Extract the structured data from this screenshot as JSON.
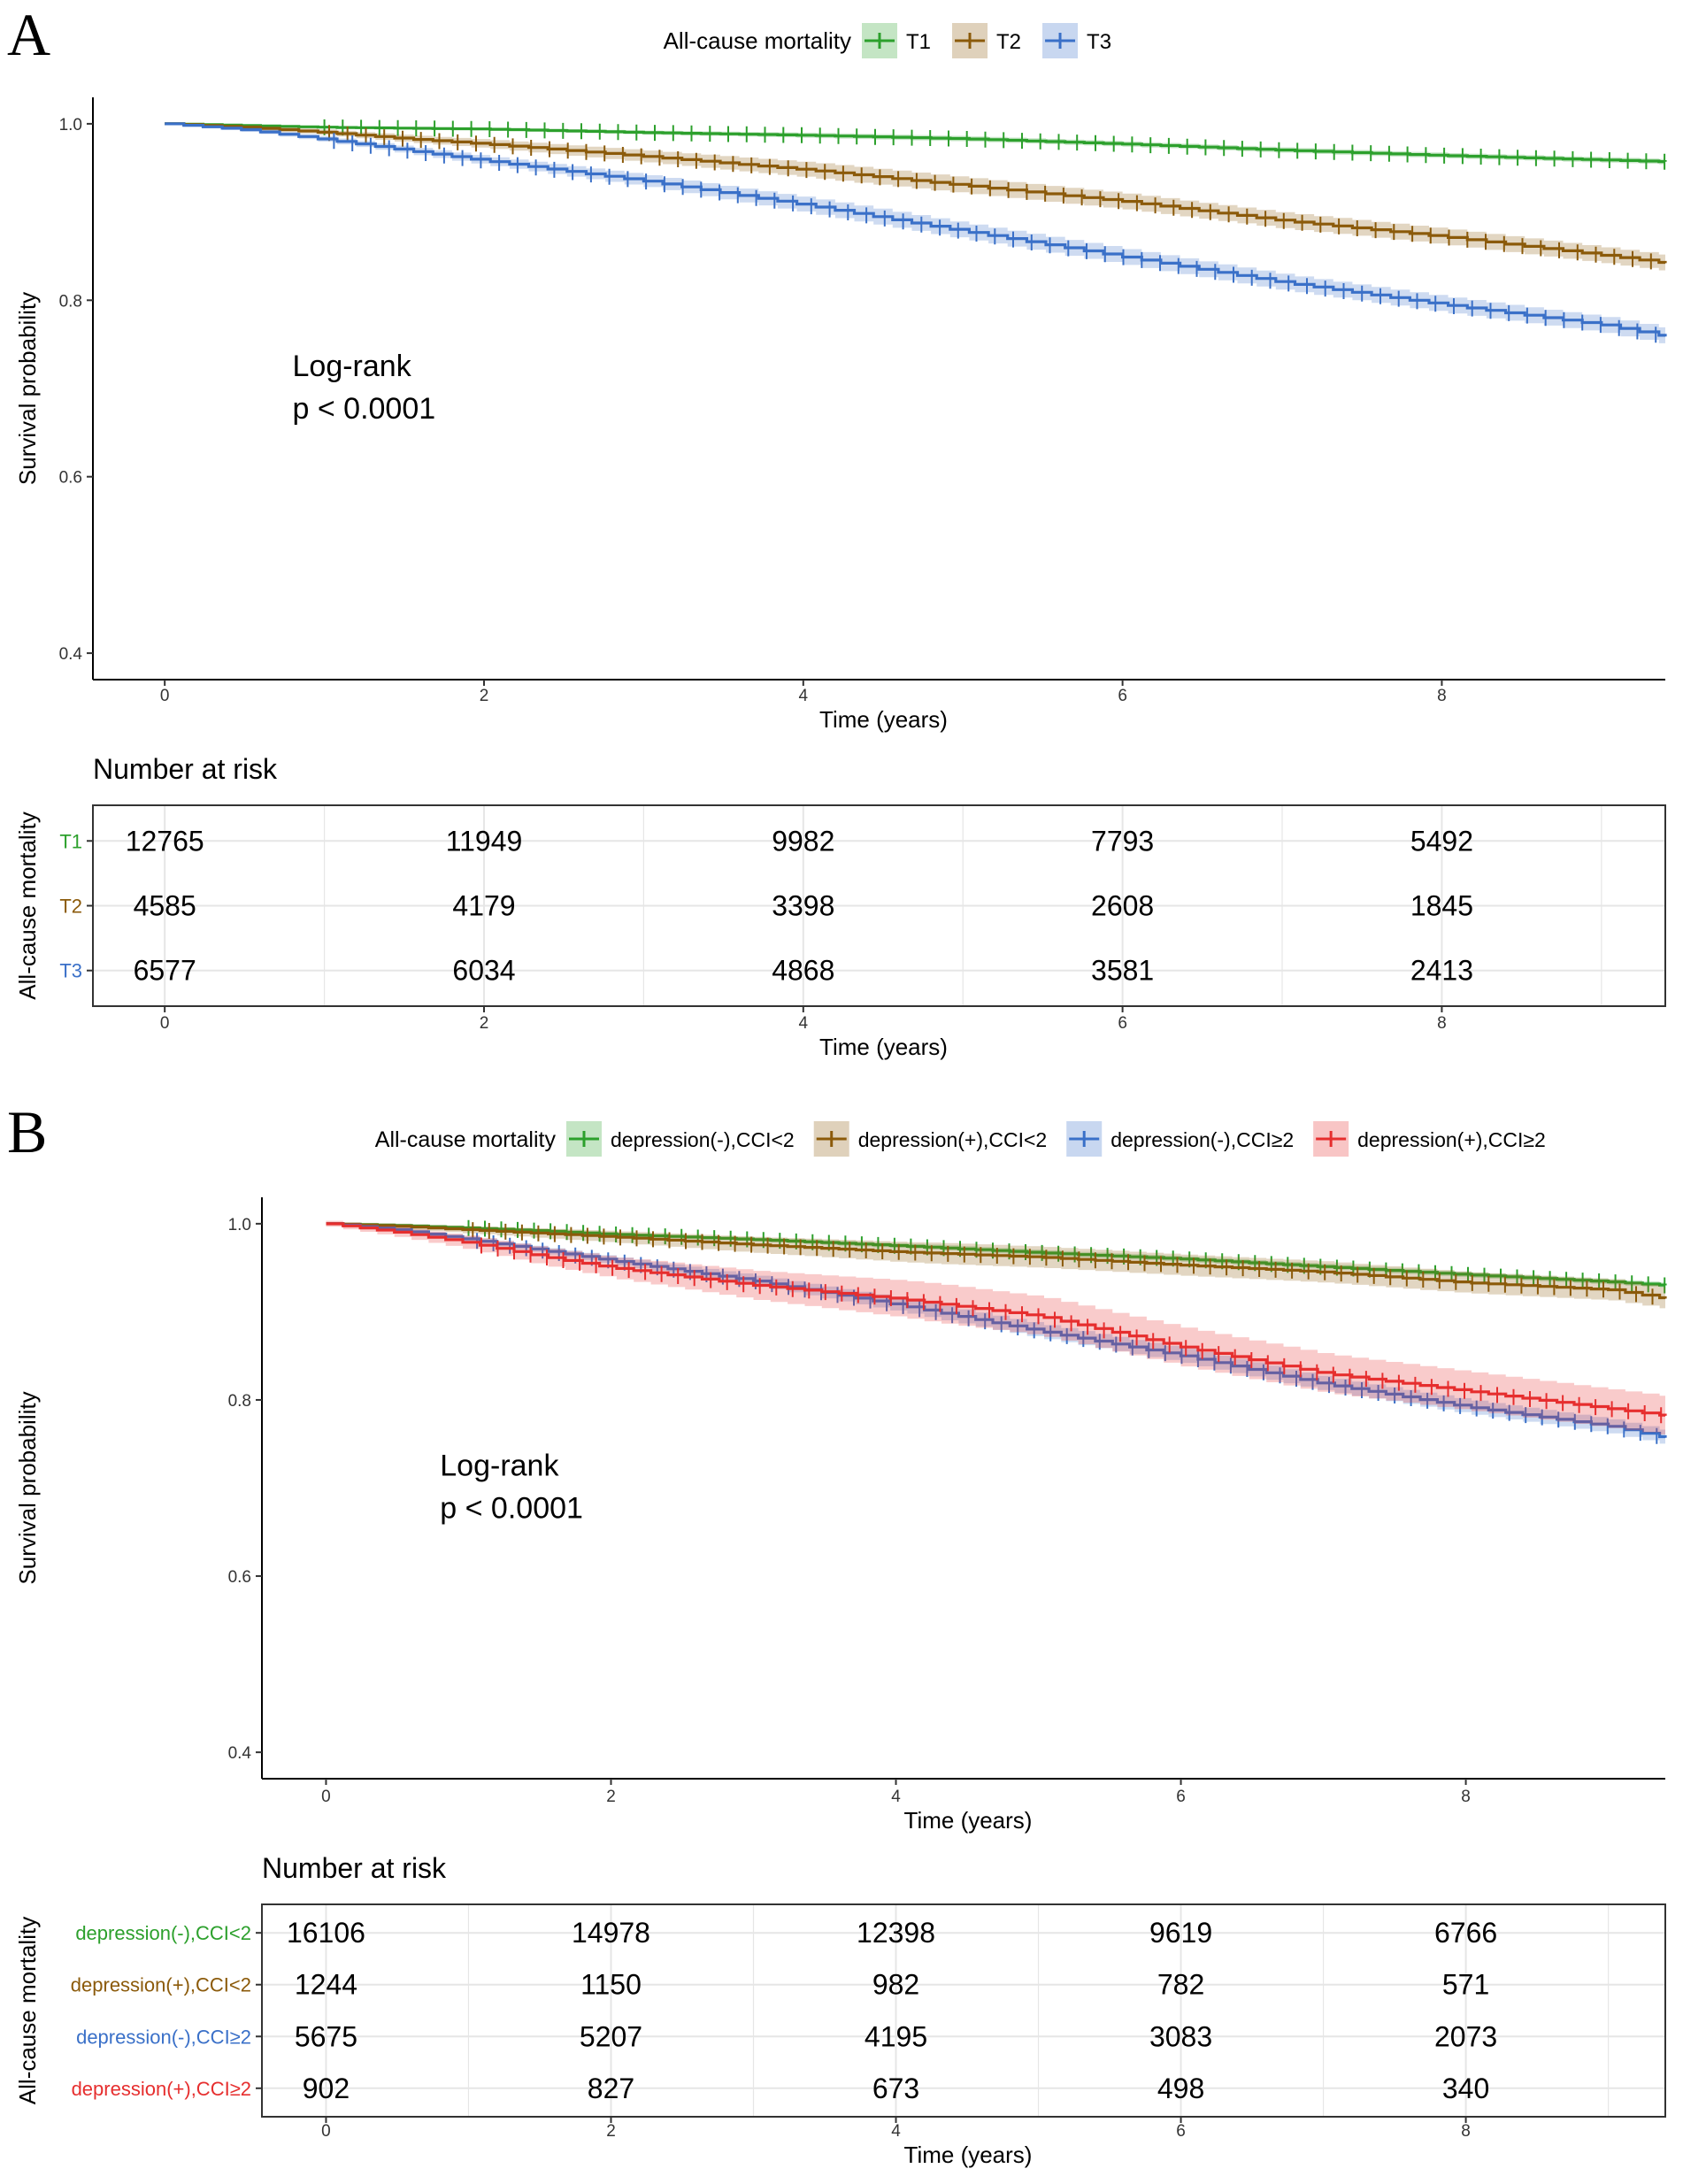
{
  "chart_data": [
    {
      "type": "line",
      "subtype": "kaplan-meier",
      "panel_label": "A",
      "legend_title": "All-cause mortality",
      "legend_position": "top",
      "xlabel": "Time (years)",
      "ylabel": "Survival probability",
      "xlim": [
        -0.45,
        9.4
      ],
      "ylim": [
        0.37,
        1.03
      ],
      "x_ticks": [
        0,
        2,
        4,
        6,
        8
      ],
      "x_tick_labels": [
        "0",
        "2",
        "4",
        "6",
        "8"
      ],
      "y_ticks": [
        0.4,
        0.6,
        0.8,
        1.0
      ],
      "y_tick_labels": [
        "0.4",
        "0.6",
        "0.8",
        "1.0"
      ],
      "annotation_line1": "Log-rank",
      "annotation_line2": "p < 0.0001",
      "annotation_x": 0.8,
      "annotation_y": 0.7,
      "series": [
        {
          "name": "T1",
          "color": "#2ca02c",
          "band": 0.003,
          "time": [
            0,
            0.5,
            1,
            1.5,
            2,
            3,
            4,
            5,
            6,
            7,
            8,
            9,
            9.4
          ],
          "survival": [
            1.0,
            0.998,
            0.996,
            0.995,
            0.994,
            0.99,
            0.987,
            0.983,
            0.977,
            0.97,
            0.964,
            0.959,
            0.957
          ]
        },
        {
          "name": "T2",
          "color": "#8b5a0a",
          "band": 0.009,
          "time": [
            0,
            0.5,
            1,
            1.5,
            2,
            3,
            4,
            5,
            6,
            7,
            8,
            9,
            9.4
          ],
          "survival": [
            1.0,
            0.996,
            0.99,
            0.983,
            0.977,
            0.963,
            0.948,
            0.93,
            0.912,
            0.89,
            0.872,
            0.851,
            0.842
          ]
        },
        {
          "name": "T3",
          "color": "#3a70c8",
          "band": 0.009,
          "time": [
            0,
            0.5,
            1,
            1.5,
            2,
            3,
            4,
            5,
            6,
            7,
            8,
            9,
            9.4
          ],
          "survival": [
            1.0,
            0.993,
            0.982,
            0.97,
            0.958,
            0.935,
            0.908,
            0.878,
            0.849,
            0.82,
            0.795,
            0.772,
            0.759
          ]
        }
      ],
      "risk_table": {
        "title": "Number at risk",
        "ylabel": "All-cause mortality",
        "xlabel": "Time (years)",
        "times": [
          0,
          2,
          4,
          6,
          8
        ],
        "rows": [
          {
            "label": "T1",
            "color": "#2ca02c",
            "values": [
              "12765",
              "11949",
              "9982",
              "7793",
              "5492"
            ]
          },
          {
            "label": "T2",
            "color": "#8b5a0a",
            "values": [
              "4585",
              "4179",
              "3398",
              "2608",
              "1845"
            ]
          },
          {
            "label": "T3",
            "color": "#3a70c8",
            "values": [
              "6577",
              "6034",
              "4868",
              "3581",
              "2413"
            ]
          }
        ]
      }
    },
    {
      "type": "line",
      "subtype": "kaplan-meier",
      "panel_label": "B",
      "legend_title": "All-cause mortality",
      "legend_position": "top",
      "xlabel": "Time (years)",
      "ylabel": "Survival probability",
      "xlim": [
        -0.45,
        9.4
      ],
      "ylim": [
        0.37,
        1.03
      ],
      "x_ticks": [
        0,
        2,
        4,
        6,
        8
      ],
      "x_tick_labels": [
        "0",
        "2",
        "4",
        "6",
        "8"
      ],
      "y_ticks": [
        0.4,
        0.6,
        0.8,
        1.0
      ],
      "y_tick_labels": [
        "0.4",
        "0.6",
        "0.8",
        "1.0"
      ],
      "annotation_line1": "Log-rank",
      "annotation_line2": "p < 0.0001",
      "annotation_x": 0.8,
      "annotation_y": 0.7,
      "series": [
        {
          "name": "depression(-),CCI<2",
          "color": "#2ca02c",
          "band": 0.003,
          "time": [
            0,
            0.5,
            1,
            1.5,
            2,
            3,
            4,
            5,
            6,
            7,
            8,
            9,
            9.4
          ],
          "survival": [
            1.0,
            0.998,
            0.995,
            0.992,
            0.988,
            0.982,
            0.975,
            0.967,
            0.96,
            0.951,
            0.942,
            0.934,
            0.93
          ]
        },
        {
          "name": "depression(+),CCI<2",
          "color": "#8b5a0a",
          "band": 0.012,
          "time": [
            0,
            0.5,
            1,
            1.5,
            2,
            3,
            4,
            5,
            6,
            7,
            8,
            9,
            9.4
          ],
          "survival": [
            1.0,
            0.997,
            0.993,
            0.989,
            0.985,
            0.976,
            0.968,
            0.962,
            0.953,
            0.945,
            0.933,
            0.925,
            0.915
          ]
        },
        {
          "name": "depression(-),CCI≥2",
          "color": "#3a70c8",
          "band": 0.008,
          "time": [
            0,
            0.5,
            1,
            1.5,
            2,
            3,
            4,
            5,
            6,
            7,
            8,
            9,
            9.4
          ],
          "survival": [
            1.0,
            0.993,
            0.982,
            0.97,
            0.958,
            0.935,
            0.908,
            0.878,
            0.85,
            0.818,
            0.792,
            0.77,
            0.757
          ]
        },
        {
          "name": "depression(+),CCI≥2",
          "color": "#e62e2e",
          "band": 0.022,
          "time": [
            0,
            0.5,
            1,
            1.5,
            2,
            3,
            4,
            5,
            6,
            7,
            8,
            9,
            9.4
          ],
          "survival": [
            1.0,
            0.99,
            0.978,
            0.963,
            0.95,
            0.93,
            0.915,
            0.895,
            0.86,
            0.83,
            0.81,
            0.79,
            0.782
          ]
        }
      ],
      "risk_table": {
        "title": "Number at risk",
        "ylabel": "All-cause mortality",
        "xlabel": "Time (years)",
        "times": [
          0,
          2,
          4,
          6,
          8
        ],
        "rows": [
          {
            "label": "depression(-),CCI<2",
            "color": "#2ca02c",
            "values": [
              "16106",
              "14978",
              "12398",
              "9619",
              "6766"
            ]
          },
          {
            "label": "depression(+),CCI<2",
            "color": "#8b5a0a",
            "values": [
              "1244",
              "1150",
              "982",
              "782",
              "571"
            ]
          },
          {
            "label": "depression(-),CCI≥2",
            "color": "#3a70c8",
            "values": [
              "5675",
              "5207",
              "4195",
              "3083",
              "2073"
            ]
          },
          {
            "label": "depression(+),CCI≥2",
            "color": "#e62e2e",
            "values": [
              "902",
              "827",
              "673",
              "498",
              "340"
            ]
          }
        ]
      }
    }
  ]
}
